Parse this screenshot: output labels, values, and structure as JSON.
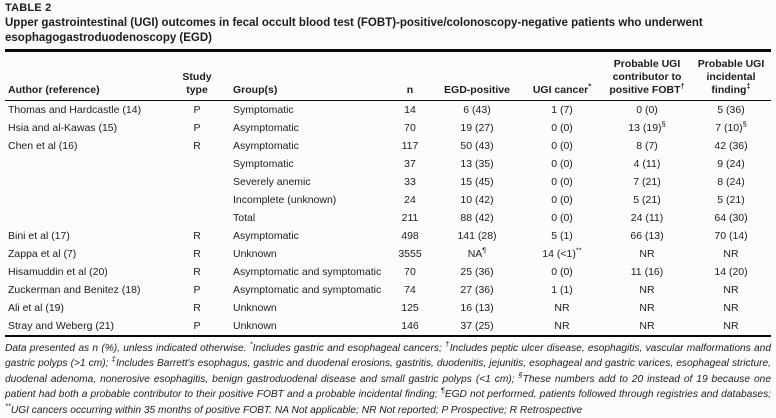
{
  "table": {
    "label": "TABLE 2",
    "title": "Upper gastrointestinal (UGI) outcomes in fecal occult blood test (FOBT)-positive/colonoscopy-negative patients who underwent esophagogastroduodenoscopy (EGD)",
    "columns": [
      "Author (reference)",
      "Study\ntype",
      "Group(s)",
      "n",
      "EGD-positive",
      "UGI cancer*",
      "Probable UGI\ncontributor to\npositive FOBT†",
      "Probable UGI\nincidental\nfinding‡"
    ],
    "rows": [
      [
        "Thomas and Hardcastle (14)",
        "P",
        "Symptomatic",
        "14",
        "6 (43)",
        "1 (7)",
        "0 (0)",
        "5 (36)"
      ],
      [
        "Hsia and al-Kawas (15)",
        "P",
        "Asymptomatic",
        "70",
        "19 (27)",
        "0 (0)",
        "13 (19)§",
        "7 (10)§"
      ],
      [
        "Chen et al (16)",
        "R",
        "Asymptomatic",
        "117",
        "50 (43)",
        "0 (0)",
        "8 (7)",
        "42 (36)"
      ],
      [
        "",
        "",
        "Symptomatic",
        "37",
        "13 (35)",
        "0 (0)",
        "4 (11)",
        "9 (24)"
      ],
      [
        "",
        "",
        "Severely anemic",
        "33",
        "15 (45)",
        "0 (0)",
        "7 (21)",
        "8 (24)"
      ],
      [
        "",
        "",
        "Incomplete (unknown)",
        "24",
        "10 (42)",
        "0 (0)",
        "5 (21)",
        "5 (21)"
      ],
      [
        "",
        "",
        "Total",
        "211",
        "88 (42)",
        "0 (0)",
        "24 (11)",
        "64 (30)"
      ],
      [
        "Bini et al (17)",
        "R",
        "Asymptomatic",
        "498",
        "141 (28)",
        "5 (1)",
        "66 (13)",
        "70 (14)"
      ],
      [
        "Zappa et al (7)",
        "R",
        "Unknown",
        "3555",
        "NA¶",
        "14 (<1)**",
        "NR",
        "NR"
      ],
      [
        "Hisamuddin et al (20)",
        "R",
        "Asymptomatic and symptomatic",
        "70",
        "25 (36)",
        "0 (0)",
        "11 (16)",
        "14 (20)"
      ],
      [
        "Zuckerman and Benitez (18)",
        "P",
        "Asymptomatic and symptomatic",
        "74",
        "27 (36)",
        "1 (1)",
        "NR",
        "NR"
      ],
      [
        "Ali et al (19)",
        "R",
        "Unknown",
        "125",
        "16 (13)",
        "NR",
        "NR",
        "NR"
      ],
      [
        "Stray and Weberg (21)",
        "P",
        "Unknown",
        "146",
        "37 (25)",
        "NR",
        "NR",
        "NR"
      ]
    ],
    "footnote": "Data presented as n (%), unless indicated otherwise. *Includes gastric and esophageal cancers; †Includes peptic ulcer disease, esophagitis, vascular malformations and gastric polyps (>1 cm); ‡Includes Barrett's esophagus, gastric and duodenal erosions, gastritis, duodenitis, jejunitis, esophageal and gastric varices, esophageal stricture, duodenal adenoma, nonerosive esophagitis, benign gastroduodenal disease and small gastric polyps (<1 cm); §These numbers add to 20 instead of 19 because one patient had both a probable contributor to their positive FOBT and a probable incidental finding; ¶EGD not performed, patients followed through registries and databases; **UGI cancers occurring within 35 months of positive FOBT. NA Not applicable; NR Not reported; P Prospective; R Retrospective"
  },
  "colors": {
    "background": "#fcfcfc",
    "text": "#1d1d1d",
    "rule": "#0a0a0a"
  }
}
